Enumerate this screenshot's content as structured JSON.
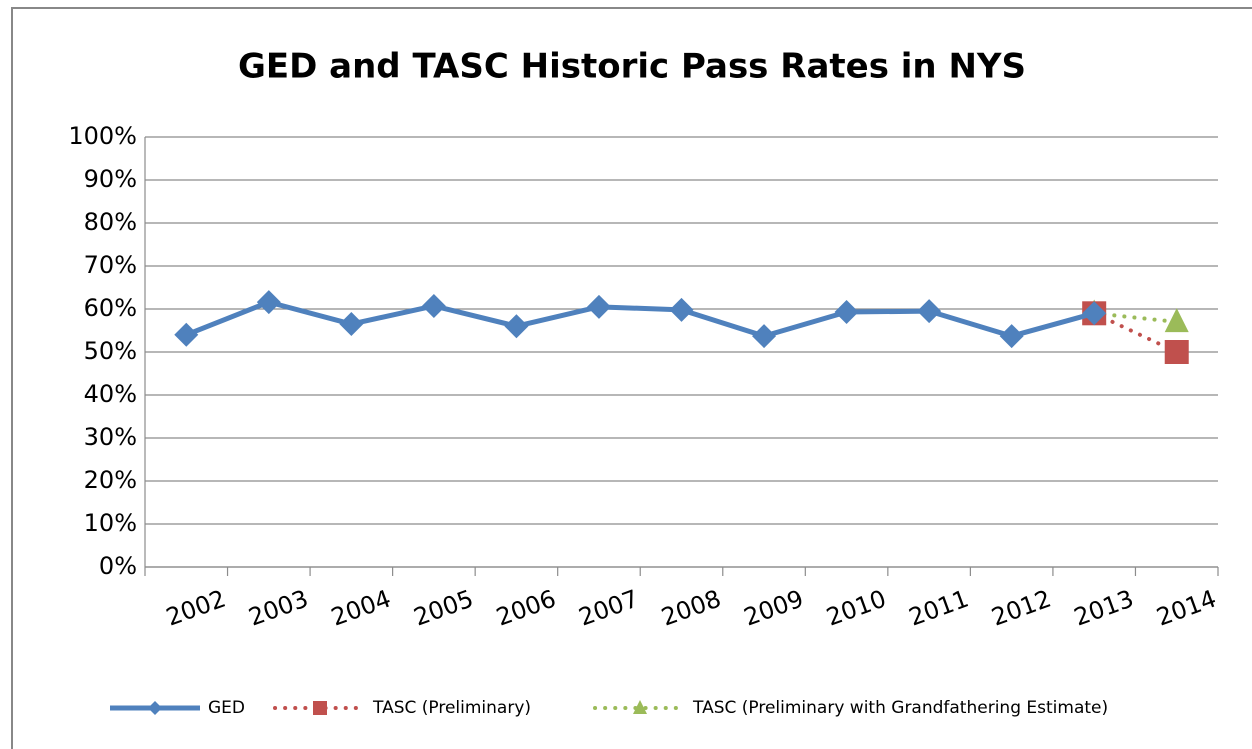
{
  "chart_data": {
    "type": "line",
    "title": "GED and TASC Historic Pass Rates in NYS",
    "categories": [
      "2002",
      "2003",
      "2004",
      "2005",
      "2006",
      "2007",
      "2008",
      "2009",
      "2010",
      "2011",
      "2012",
      "2013",
      "2014"
    ],
    "series": [
      {
        "name": "GED",
        "color": "#4f81bd",
        "style": "solid",
        "marker": "diamond",
        "values": [
          54,
          61.6,
          56.5,
          60.7,
          56,
          60.5,
          59.8,
          53.7,
          59.3,
          59.5,
          53.7,
          59,
          null
        ]
      },
      {
        "name": "TASC (Preliminary)",
        "color": "#c0504d",
        "style": "dotted",
        "marker": "square",
        "values": [
          null,
          null,
          null,
          null,
          null,
          null,
          null,
          null,
          null,
          null,
          null,
          59,
          50
        ]
      },
      {
        "name": "TASC (Preliminary with Grandfathering Estimate)",
        "color": "#9bbb59",
        "style": "dotted",
        "marker": "triangle",
        "values": [
          null,
          null,
          null,
          null,
          null,
          null,
          null,
          null,
          null,
          null,
          null,
          59,
          57
        ]
      }
    ],
    "ylim": [
      0,
      100
    ],
    "yticks": [
      {
        "value": 0,
        "label": "0%"
      },
      {
        "value": 10,
        "label": "10%"
      },
      {
        "value": 20,
        "label": "20%"
      },
      {
        "value": 30,
        "label": "30%"
      },
      {
        "value": 40,
        "label": "40%"
      },
      {
        "value": 50,
        "label": "50%"
      },
      {
        "value": 60,
        "label": "60%"
      },
      {
        "value": 70,
        "label": "70%"
      },
      {
        "value": 80,
        "label": "80%"
      },
      {
        "value": 90,
        "label": "90%"
      },
      {
        "value": 100,
        "label": "100%"
      }
    ],
    "grid": true,
    "legend": "bottom"
  }
}
